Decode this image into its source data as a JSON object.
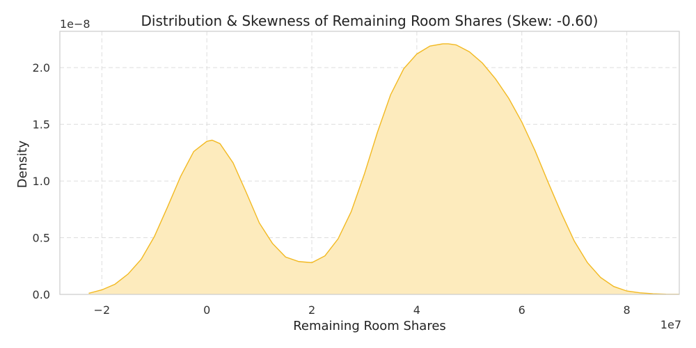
{
  "chart_data": {
    "type": "area",
    "title": "Distribution & Skewness of Remaining Room Shares (Skew: -0.60)",
    "xlabel": "Remaining Room Shares",
    "ylabel": "Density",
    "x_offset_label": "1e7",
    "y_offset_label": "1e−8",
    "xlim": [
      -2.8,
      9.0
    ],
    "ylim": [
      0,
      2.32
    ],
    "xticks": [
      -2,
      0,
      2,
      4,
      6,
      8
    ],
    "xtick_labels": [
      "−2",
      "0",
      "2",
      "4",
      "6",
      "8"
    ],
    "yticks": [
      0.0,
      0.5,
      1.0,
      1.5,
      2.0
    ],
    "ytick_labels": [
      "0.0",
      "0.5",
      "1.0",
      "1.5",
      "2.0"
    ],
    "grid": true,
    "series": [
      {
        "x": [
          -2.25,
          -2.0,
          -1.75,
          -1.5,
          -1.25,
          -1.0,
          -0.75,
          -0.5,
          -0.25,
          0.0,
          0.1,
          0.25,
          0.5,
          0.75,
          1.0,
          1.25,
          1.5,
          1.75,
          2.0,
          2.25,
          2.5,
          2.75,
          3.0,
          3.25,
          3.5,
          3.75,
          4.0,
          4.25,
          4.5,
          4.6,
          4.75,
          5.0,
          5.25,
          5.5,
          5.75,
          6.0,
          6.25,
          6.5,
          6.75,
          7.0,
          7.25,
          7.5,
          7.75,
          8.0,
          8.25,
          8.5,
          8.75,
          9.0
        ],
        "values": [
          0.01,
          0.04,
          0.09,
          0.18,
          0.31,
          0.51,
          0.77,
          1.04,
          1.26,
          1.35,
          1.36,
          1.33,
          1.16,
          0.9,
          0.63,
          0.45,
          0.33,
          0.29,
          0.28,
          0.34,
          0.49,
          0.73,
          1.06,
          1.43,
          1.76,
          1.99,
          2.12,
          2.19,
          2.21,
          2.21,
          2.2,
          2.14,
          2.04,
          1.9,
          1.73,
          1.52,
          1.27,
          0.99,
          0.72,
          0.47,
          0.28,
          0.15,
          0.07,
          0.03,
          0.014,
          0.006,
          0.002,
          0.001
        ]
      }
    ],
    "colors": {
      "fill": "#fdebbd",
      "line": "#f2b921"
    }
  }
}
